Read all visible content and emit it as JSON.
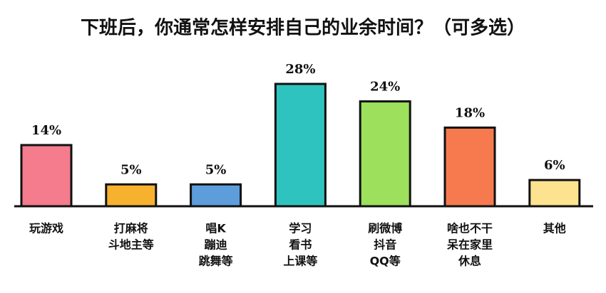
{
  "chart_data": {
    "type": "bar",
    "title": "下班后，你通常怎样安排自己的业余时间？（可多选）",
    "categories": [
      [
        "玩游戏"
      ],
      [
        "打麻将",
        "斗地主等"
      ],
      [
        "唱K",
        "蹦迪",
        "跳舞等"
      ],
      [
        "学习",
        "看书",
        "上课等"
      ],
      [
        "刷微博",
        "抖音",
        "QQ等"
      ],
      [
        "啥也不干",
        "呆在家里",
        "休息"
      ],
      [
        "其他"
      ]
    ],
    "values": [
      14,
      5,
      5,
      28,
      24,
      18,
      6
    ],
    "value_labels": [
      "14%",
      "5%",
      "5%",
      "28%",
      "24%",
      "18%",
      "6%"
    ],
    "colors": [
      "#f47c8c",
      "#f6b22e",
      "#5d9ddc",
      "#2fc3bf",
      "#9de05c",
      "#f67a4e",
      "#fde38f"
    ]
  }
}
